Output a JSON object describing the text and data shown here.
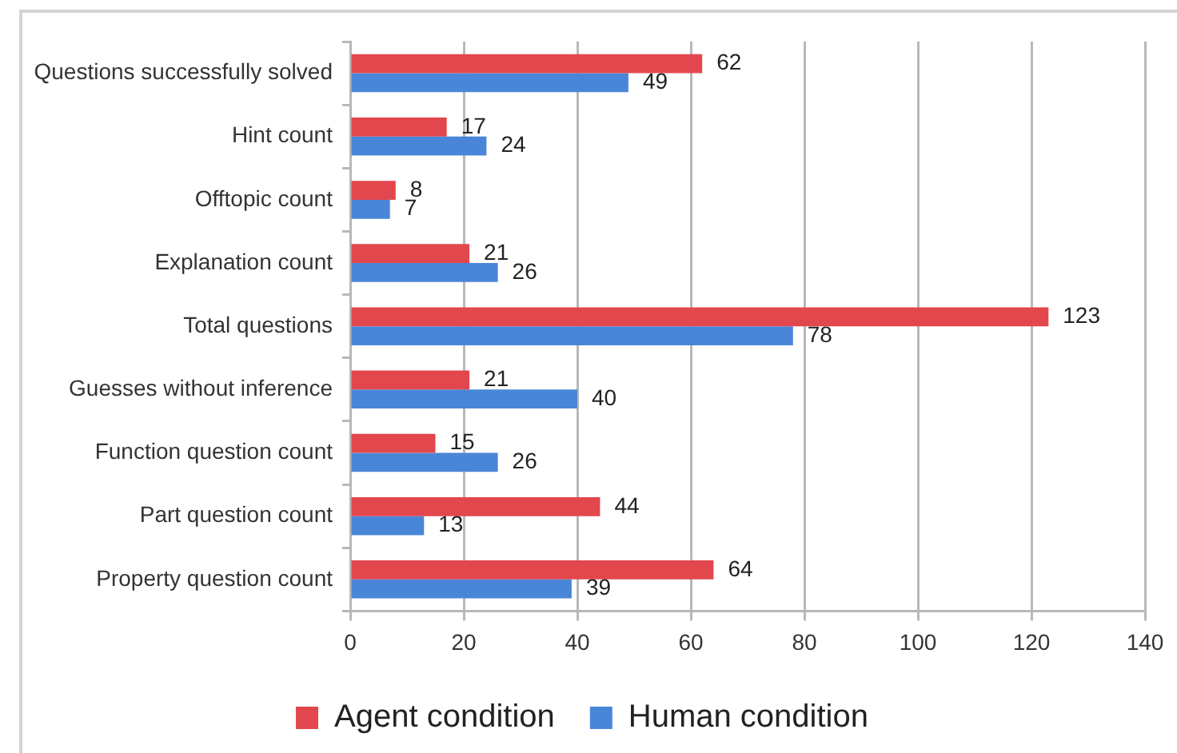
{
  "chart_data": {
    "type": "bar",
    "orientation": "horizontal",
    "categories": [
      "Questions successfully solved",
      "Hint count",
      "Offtopic count",
      "Explanation count",
      "Total questions",
      "Guesses without inference",
      "Function question count",
      "Part question count",
      "Property question count"
    ],
    "series": [
      {
        "name": "Agent condition",
        "color": "#e2474d",
        "values": [
          62,
          17,
          8,
          21,
          123,
          21,
          15,
          44,
          64
        ]
      },
      {
        "name": "Human condition",
        "color": "#4a86d8",
        "values": [
          49,
          24,
          7,
          26,
          78,
          40,
          26,
          13,
          39
        ]
      }
    ],
    "xlim": [
      0,
      140
    ],
    "xticks": [
      0,
      20,
      40,
      60,
      80,
      100,
      120,
      140
    ],
    "grid": "x",
    "legend": "bottom",
    "data_labels": true
  }
}
